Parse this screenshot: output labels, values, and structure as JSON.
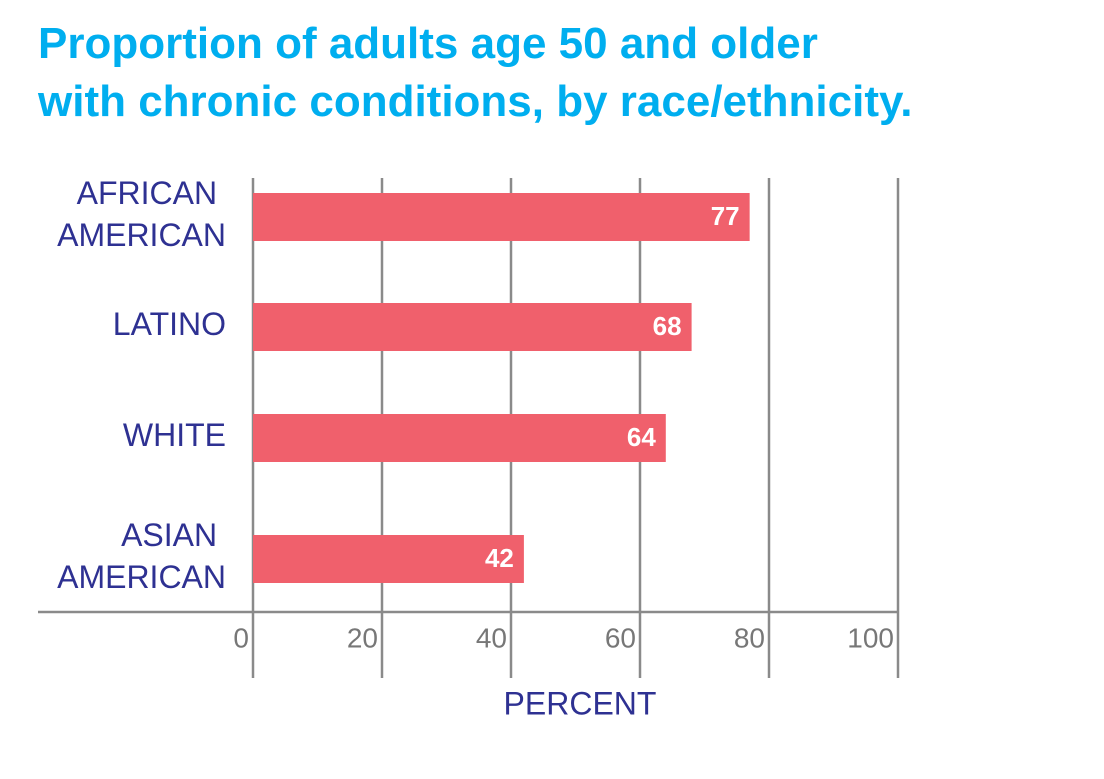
{
  "chart_data": {
    "type": "barh",
    "title": "Proportion of adults age 50 and older with chronic conditions, by race/ethnicity.",
    "categories": [
      "AFRICAN AMERICAN",
      "LATINO",
      "WHITE",
      "ASIAN AMERICAN"
    ],
    "values": [
      77,
      68,
      64,
      42
    ],
    "color": "#f0606c",
    "xlabel": "PERCENT",
    "xlim": [
      0,
      100
    ],
    "xticks": [
      0,
      20,
      40,
      60,
      80,
      100
    ],
    "grid": true
  }
}
